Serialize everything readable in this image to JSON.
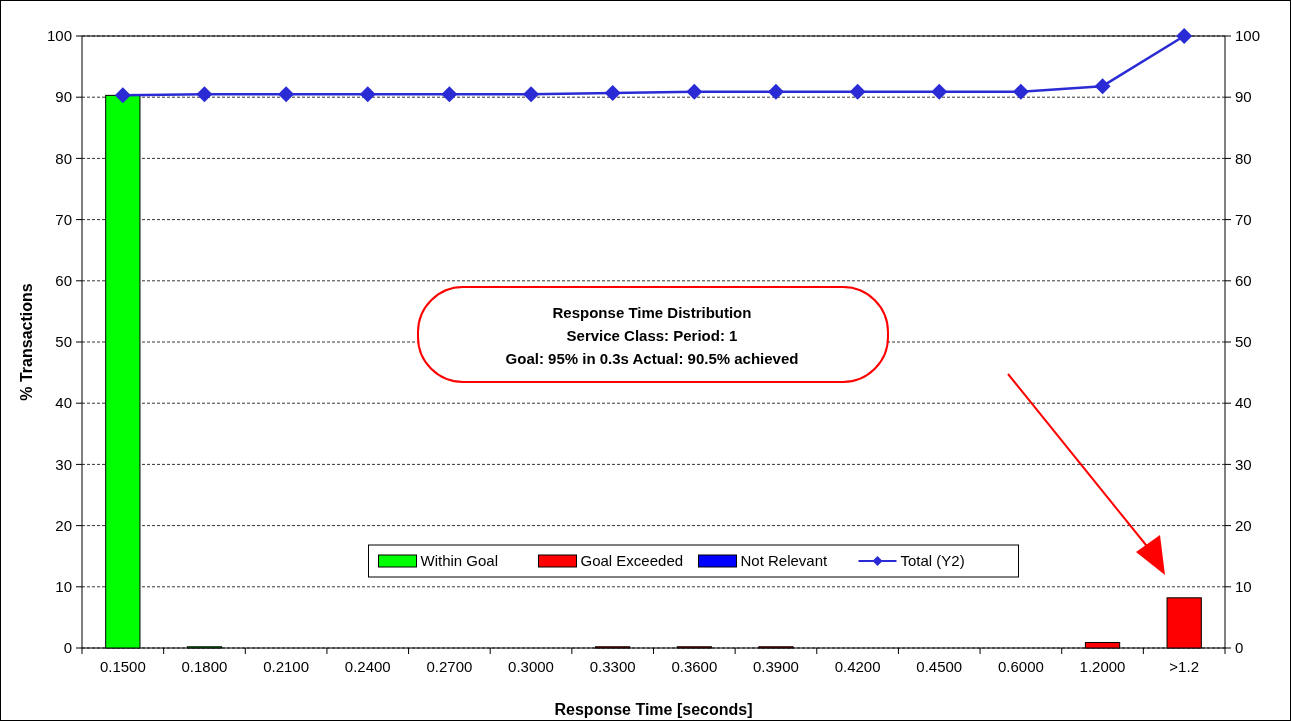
{
  "chart_data": {
    "type": "bar",
    "stacked": true,
    "categories": [
      "0.1500",
      "0.1800",
      "0.2100",
      "0.2400",
      "0.2700",
      "0.3000",
      "0.3300",
      "0.3600",
      "0.3900",
      "0.4200",
      "0.4500",
      "0.6000",
      "1.2000",
      ">1.2"
    ],
    "xlabel": "Response Time [seconds]",
    "ylabel": "% Transactions",
    "series": [
      {
        "name": "Within Goal",
        "color": "#00ff00",
        "values": [
          90.3,
          0.2,
          0,
          0,
          0,
          0,
          0,
          0,
          0,
          0,
          0,
          0,
          0,
          0
        ]
      },
      {
        "name": "Goal Exceeded",
        "color": "#ff0000",
        "values": [
          0,
          0,
          0,
          0,
          0,
          0,
          0.2,
          0.2,
          0.2,
          0,
          0,
          0,
          0.9,
          8.2
        ]
      },
      {
        "name": "Not Relevant",
        "color": "#0000ff",
        "values": [
          0,
          0,
          0,
          0,
          0,
          0,
          0,
          0,
          0,
          0,
          0,
          0,
          0,
          0
        ]
      },
      {
        "name": "Total (Y2)",
        "type": "line",
        "axis": "y2",
        "color": "#2b2bd6",
        "values": [
          90.3,
          90.5,
          90.5,
          90.5,
          90.5,
          90.5,
          90.7,
          90.9,
          90.9,
          90.9,
          90.9,
          90.9,
          91.8,
          100
        ]
      }
    ],
    "ylim": [
      0,
      100
    ],
    "yticks": [
      0,
      10,
      20,
      30,
      40,
      50,
      60,
      70,
      80,
      90,
      100
    ],
    "y2lim": [
      0,
      100
    ],
    "y2ticks": [
      0,
      10,
      20,
      30,
      40,
      50,
      60,
      70,
      80,
      90,
      100
    ],
    "grid": "y",
    "legend": "bottom",
    "marker": "diamond",
    "line_style": "solid",
    "annotations": [
      "Response  Time Distribution",
      "Service Class:  Period: 1",
      "Goal: 95%  in 0.3s   Actual: 90.5%  achieved"
    ]
  }
}
